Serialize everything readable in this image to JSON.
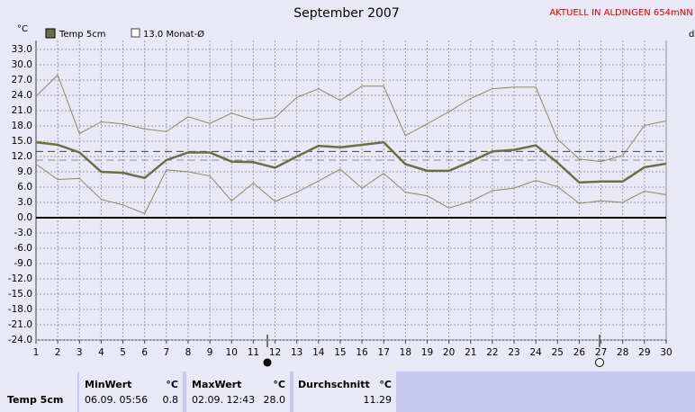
{
  "chart_data": {
    "type": "line",
    "title": "September 2007",
    "notice": "AKTUELL IN ALDINGEN 654mNN",
    "y_unit": "°C",
    "x_unit": "d",
    "categories": [
      "1",
      "2",
      "3",
      "4",
      "5",
      "6",
      "7",
      "8",
      "9",
      "10",
      "11",
      "12",
      "13",
      "14",
      "15",
      "16",
      "17",
      "18",
      "19",
      "20",
      "21",
      "22",
      "23",
      "24",
      "25",
      "26",
      "27",
      "28",
      "29",
      "30"
    ],
    "series": [
      {
        "name": "Temp 5cm",
        "color": "#6e6e44",
        "values": [
          14.8,
          14.3,
          12.8,
          9.0,
          8.8,
          7.8,
          11.3,
          12.8,
          12.8,
          11.0,
          10.9,
          9.8,
          12.0,
          14.1,
          13.8,
          14.3,
          14.8,
          10.5,
          9.2,
          9.2,
          11.0,
          13.0,
          13.3,
          14.2,
          10.8,
          6.9,
          7.1,
          7.1,
          9.9,
          10.6
        ]
      },
      {
        "color": "#8a8a6a",
        "values": [
          23.8,
          28.0,
          16.5,
          18.8,
          18.4,
          17.4,
          16.9,
          19.8,
          18.5,
          20.5,
          19.2,
          19.6,
          23.6,
          25.3,
          23.0,
          25.8,
          25.8,
          16.1,
          18.4,
          20.8,
          23.4,
          25.3,
          25.6,
          25.6,
          15.4,
          11.5,
          11.0,
          12.2,
          18.1,
          19.0
        ]
      },
      {
        "color": "#8a8a6a",
        "values": [
          10.5,
          7.5,
          7.7,
          3.6,
          2.5,
          0.8,
          9.4,
          9.0,
          8.2,
          3.3,
          6.8,
          3.2,
          5.0,
          7.2,
          9.5,
          5.8,
          8.7,
          5.0,
          4.3,
          1.9,
          3.2,
          5.3,
          5.8,
          7.3,
          6.1,
          2.8,
          3.3,
          3.0,
          5.2,
          4.5
        ]
      }
    ],
    "monthly_mean": {
      "name": "13.0 Monat-Ø",
      "value": 13.0,
      "color": "#404040"
    },
    "ylim": [
      -24,
      33
    ],
    "yticks": [
      {
        "value": 33,
        "label": "33.0"
      },
      {
        "value": 30,
        "label": "30.0"
      },
      {
        "value": 27,
        "label": "27.0"
      },
      {
        "value": 24,
        "label": "24.0"
      },
      {
        "value": 21,
        "label": "21.0"
      },
      {
        "value": 18,
        "label": "18.0"
      },
      {
        "value": 15,
        "label": "15.0"
      },
      {
        "value": 12,
        "label": "12.0"
      },
      {
        "value": 9,
        "label": "9.0"
      },
      {
        "value": 6,
        "label": "6.0"
      },
      {
        "value": 3,
        "label": "3.0"
      },
      {
        "value": 0,
        "label": "0.0"
      },
      {
        "value": -3,
        "label": "-3.0"
      },
      {
        "value": -6,
        "label": "-6.0"
      },
      {
        "value": -9,
        "label": "-9.0"
      },
      {
        "value": -12,
        "label": "-12.0"
      },
      {
        "value": -15,
        "label": "-15.0"
      },
      {
        "value": -18,
        "label": "-18.0"
      },
      {
        "value": -21,
        "label": "-21.0"
      },
      {
        "value": -24,
        "label": "-24.0"
      }
    ],
    "grid": true
  },
  "table": {
    "row_label": "Temp 5cm",
    "columns": [
      {
        "header": "MinWert",
        "unit": "°C",
        "time": "06.09.  05:56",
        "value": "0.8"
      },
      {
        "header": "MaxWert",
        "unit": "°C",
        "time": "02.09.  12:43",
        "value": "28.0"
      },
      {
        "header": "Durchschnitt",
        "unit": "°C",
        "value": 11.29
      }
    ]
  }
}
